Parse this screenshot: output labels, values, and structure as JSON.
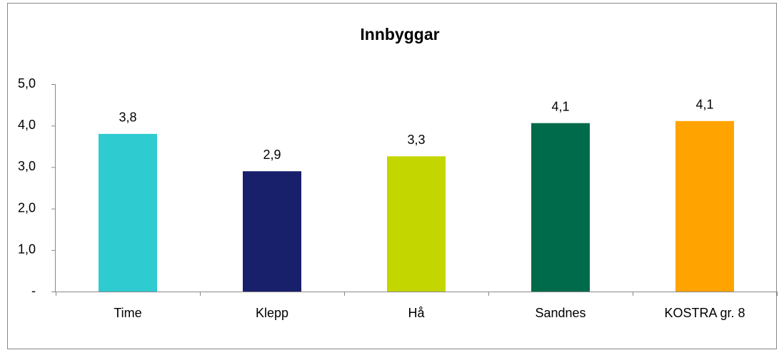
{
  "chart_data": {
    "type": "bar",
    "title": "Innbyggar",
    "categories": [
      "Time",
      "Klepp",
      "Hå",
      "Sandnes",
      "KOSTRA gr. 8"
    ],
    "values": [
      3.8,
      2.9,
      3.26,
      4.06,
      4.11
    ],
    "value_labels": [
      "3,8",
      "2,9",
      "3,3",
      "4,1",
      "4,1"
    ],
    "colors": [
      "#2ecbd0",
      "#18206b",
      "#c4d600",
      "#006b4a",
      "#ffa300"
    ],
    "ylim": [
      0,
      5
    ],
    "yticks": [
      {
        "value": 0,
        "label": "-"
      },
      {
        "value": 1,
        "label": "1,0"
      },
      {
        "value": 2,
        "label": "2,0"
      },
      {
        "value": 3,
        "label": "3,0"
      },
      {
        "value": 4,
        "label": "4,0"
      },
      {
        "value": 5,
        "label": "5,0"
      }
    ],
    "grid": false
  }
}
